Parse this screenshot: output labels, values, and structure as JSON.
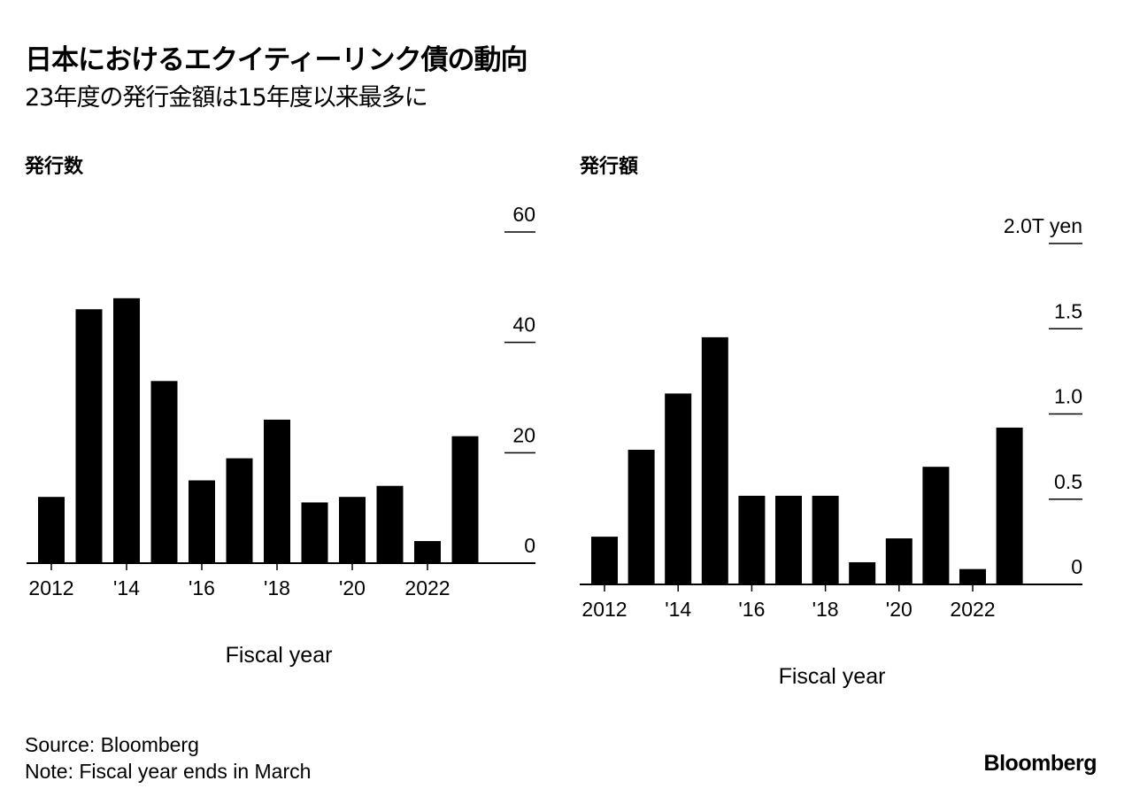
{
  "title": "日本におけるエクイティーリンク債の動向",
  "subtitle": "23年度の発行金額は15年度以来最多に",
  "footer": {
    "source": "Source: Bloomberg",
    "note": "Note: Fiscal year ends in March",
    "logo": "Bloomberg"
  },
  "chart_data": [
    {
      "type": "bar",
      "title": "発行数",
      "xlabel": "Fiscal year",
      "ylabel": "",
      "categories": [
        "2012",
        "2013",
        "2014",
        "2015",
        "2016",
        "2017",
        "2018",
        "2019",
        "2020",
        "2021",
        "2022",
        "2023"
      ],
      "x_tick_labels": {
        "2012": "2012",
        "2014": "'14",
        "2016": "'16",
        "2018": "'18",
        "2020": "'20",
        "2022": "2022"
      },
      "values": [
        12,
        46,
        48,
        33,
        15,
        19,
        26,
        11,
        12,
        14,
        4,
        23
      ],
      "y_ticks": [
        0,
        20,
        40,
        60
      ],
      "y_tick_labels": [
        "0",
        "20",
        "40",
        "60"
      ],
      "ylim": [
        0,
        60
      ],
      "grid": true,
      "bar_color": "#000000"
    },
    {
      "type": "bar",
      "title": "発行額",
      "xlabel": "Fiscal year",
      "ylabel": "",
      "categories": [
        "2012",
        "2013",
        "2014",
        "2015",
        "2016",
        "2017",
        "2018",
        "2019",
        "2020",
        "2021",
        "2022",
        "2023"
      ],
      "x_tick_labels": {
        "2012": "2012",
        "2014": "'14",
        "2016": "'16",
        "2018": "'18",
        "2020": "'20",
        "2022": "2022"
      },
      "values": [
        0.28,
        0.79,
        1.12,
        1.45,
        0.52,
        0.52,
        0.52,
        0.13,
        0.27,
        0.69,
        0.09,
        0.92
      ],
      "y_ticks": [
        0,
        0.5,
        1.0,
        1.5,
        2.0
      ],
      "y_tick_labels": [
        "0",
        "0.5",
        "1.0",
        "1.5",
        "2.0T yen"
      ],
      "ylim": [
        0,
        2.0
      ],
      "grid": true,
      "bar_color": "#000000"
    }
  ]
}
